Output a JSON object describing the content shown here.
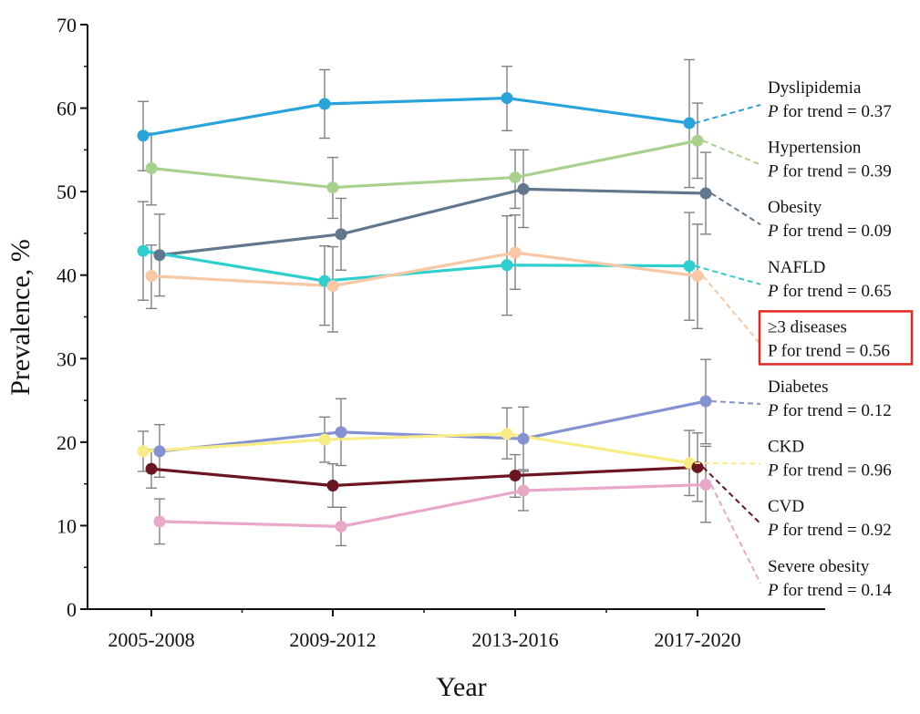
{
  "chart_data": {
    "type": "line",
    "title": "",
    "xlabel": "Year",
    "ylabel": "Prevalence, %",
    "ylim": [
      0,
      70
    ],
    "yticks": [
      0,
      10,
      20,
      30,
      40,
      50,
      60,
      70
    ],
    "categories": [
      "2005-2008",
      "2009-2012",
      "2013-2016",
      "2017-2020"
    ],
    "grid": false,
    "series": [
      {
        "name": "Dyslipidemia",
        "trend_prefix": "P",
        "trend_text": " for trend = 0.37",
        "italic_p": true,
        "color": "#29a3dc",
        "values": [
          56.7,
          60.5,
          61.2,
          58.2
        ],
        "err_low": [
          52.5,
          56.4,
          57.3,
          50.5
        ],
        "err_high": [
          60.8,
          64.6,
          65.0,
          65.8
        ]
      },
      {
        "name": "Hypertension",
        "trend_prefix": "P",
        "trend_text": " for trend = 0.39",
        "italic_p": true,
        "color": "#a9d18e",
        "values": [
          52.8,
          50.5,
          51.7,
          56.1
        ],
        "err_low": [
          48.4,
          46.8,
          48.0,
          51.6
        ],
        "err_high": [
          57.0,
          54.1,
          55.0,
          60.6
        ]
      },
      {
        "name": "Obesity",
        "trend_prefix": "P",
        "trend_text": " for trend = 0.09",
        "italic_p": true,
        "color": "#61778e",
        "values": [
          42.4,
          44.9,
          50.3,
          49.8
        ],
        "err_low": [
          37.5,
          40.6,
          45.7,
          44.9
        ],
        "err_high": [
          47.3,
          49.2,
          55.0,
          54.7
        ]
      },
      {
        "name": "NAFLD",
        "trend_prefix": "P",
        "trend_text": " for trend = 0.65",
        "italic_p": true,
        "color": "#2fcfcf",
        "values": [
          42.9,
          39.3,
          41.2,
          41.1
        ],
        "err_low": [
          37.0,
          34.0,
          35.2,
          34.6
        ],
        "err_high": [
          48.8,
          43.5,
          47.1,
          47.5
        ]
      },
      {
        "name": "≥3 diseases",
        "trend_prefix": "P",
        "trend_text": " for trend = 0.56",
        "italic_p": false,
        "boxed": true,
        "color": "#f8c8a4",
        "values": [
          39.9,
          38.7,
          42.7,
          39.9
        ],
        "err_low": [
          36.0,
          33.2,
          38.3,
          33.6
        ],
        "err_high": [
          43.6,
          43.4,
          47.2,
          46.1
        ]
      },
      {
        "name": "Diabetes",
        "trend_prefix": "P",
        "trend_text": " for trend = 0.12",
        "italic_p": true,
        "color": "#8491d3",
        "values": [
          18.9,
          21.2,
          20.4,
          24.9
        ],
        "err_low": [
          15.8,
          17.2,
          16.7,
          19.8
        ],
        "err_high": [
          22.1,
          25.2,
          24.2,
          29.9
        ]
      },
      {
        "name": "CKD",
        "trend_prefix": "P",
        "trend_text": " for trend = 0.96",
        "italic_p": true,
        "color": "#f8ec84",
        "values": [
          18.9,
          20.3,
          21.0,
          17.5
        ],
        "err_low": [
          16.5,
          17.6,
          18.0,
          13.6
        ],
        "err_high": [
          21.3,
          23.0,
          24.1,
          21.4
        ]
      },
      {
        "name": "CVD",
        "trend_prefix": "P",
        "trend_text": " for trend = 0.92",
        "italic_p": true,
        "color": "#6b1521",
        "values": [
          16.8,
          14.8,
          16.0,
          17.0
        ],
        "err_low": [
          14.5,
          12.2,
          13.4,
          12.9
        ],
        "err_high": [
          19.1,
          17.4,
          18.5,
          21.1
        ]
      },
      {
        "name": "Severe obesity",
        "trend_prefix": "P",
        "trend_text": " for trend = 0.14",
        "italic_p": true,
        "color": "#eaa8c8",
        "values": [
          10.5,
          9.9,
          14.2,
          14.9
        ],
        "err_low": [
          7.8,
          7.6,
          11.8,
          10.4
        ],
        "err_high": [
          13.2,
          12.2,
          16.5,
          19.5
        ]
      }
    ]
  }
}
